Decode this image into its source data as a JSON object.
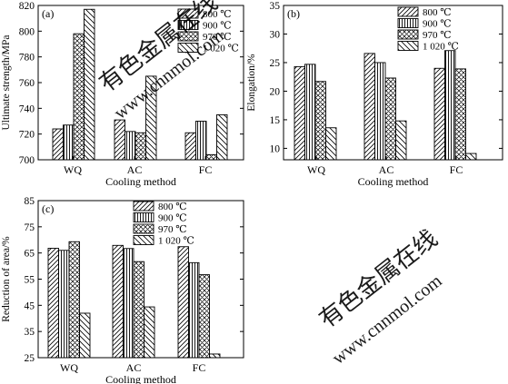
{
  "watermark": {
    "text_cn": "有色金属在线",
    "text_url": "www.cnnmol.com"
  },
  "chart_data": [
    {
      "type": "bar",
      "panel": "(a)",
      "ylabel": "Ultimate strength/MPa",
      "xlabel": "Cooling method",
      "categories": [
        "WQ",
        "AC",
        "FC"
      ],
      "ylim": [
        700,
        820
      ],
      "yticks": [
        700,
        720,
        740,
        760,
        780,
        800,
        820
      ],
      "series": [
        {
          "name": "800 ℃",
          "values": [
            724,
            731,
            721
          ]
        },
        {
          "name": "900 ℃",
          "values": [
            727,
            722,
            730
          ]
        },
        {
          "name": "970 ℃",
          "values": [
            798,
            721,
            704
          ]
        },
        {
          "name": "1 020 ℃",
          "values": [
            817,
            765,
            735
          ]
        }
      ],
      "legend": "top-right"
    },
    {
      "type": "bar",
      "panel": "(b)",
      "ylabel": "Elongation/%",
      "xlabel": "Cooling method",
      "categories": [
        "WQ",
        "AC",
        "FC"
      ],
      "ylim": [
        8,
        35
      ],
      "yticks": [
        10,
        15,
        20,
        25,
        30,
        35
      ],
      "series": [
        {
          "name": "800 ℃",
          "values": [
            24.3,
            26.6,
            24.0
          ]
        },
        {
          "name": "900 ℃",
          "values": [
            24.7,
            25.0,
            27.1
          ]
        },
        {
          "name": "970 ℃",
          "values": [
            21.7,
            22.3,
            23.9
          ]
        },
        {
          "name": "1 020 ℃",
          "values": [
            13.6,
            14.8,
            9.1
          ]
        }
      ],
      "legend": "top-right"
    },
    {
      "type": "bar",
      "panel": "(c)",
      "ylabel": "Reduction of area/%",
      "xlabel": "Cooling method",
      "categories": [
        "WQ",
        "AC",
        "FC"
      ],
      "ylim": [
        25,
        85
      ],
      "yticks": [
        25,
        35,
        45,
        55,
        65,
        75,
        85
      ],
      "series": [
        {
          "name": "800 ℃",
          "values": [
            66.8,
            67.9,
            67.4
          ]
        },
        {
          "name": "900 ℃",
          "values": [
            66.0,
            66.7,
            61.3
          ]
        },
        {
          "name": "970 ℃",
          "values": [
            69.3,
            61.7,
            56.7
          ]
        },
        {
          "name": "1 020 ℃",
          "values": [
            42.0,
            44.4,
            26.4
          ]
        }
      ],
      "legend": "top-center"
    }
  ]
}
